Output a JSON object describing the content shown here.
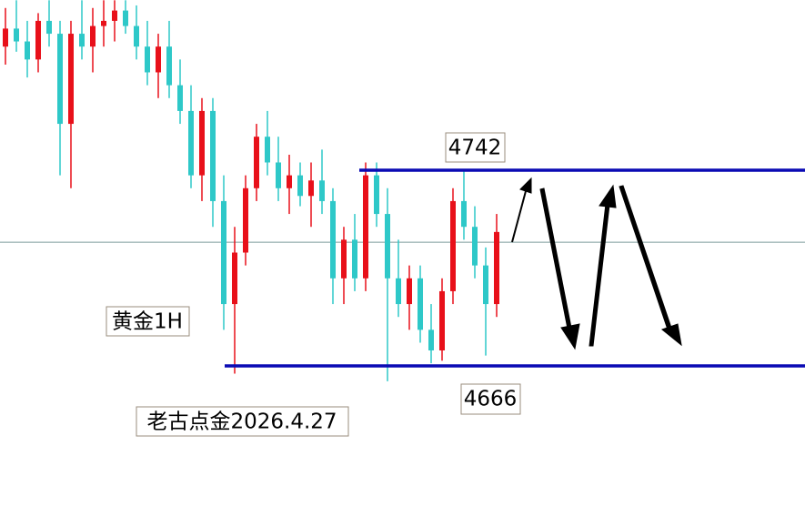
{
  "chart_data": {
    "type": "candlestick",
    "open": [
      4790,
      4797,
      4792,
      4785,
      4800,
      4795,
      4760,
      4795,
      4790,
      4798,
      4800,
      4804,
      4798,
      4790,
      4780,
      4790,
      4775,
      4765,
      4740,
      4765,
      4730,
      4690,
      4710,
      4735,
      4755,
      4745,
      4735,
      4740,
      4732,
      4738,
      4730,
      4700,
      4715,
      4700,
      4740,
      4725,
      4700,
      4690,
      4700,
      4680,
      4672,
      4695,
      4730,
      4720,
      4705,
      4690
    ],
    "high": [
      4805,
      4808,
      4800,
      4803,
      4808,
      4800,
      4800,
      4808,
      4805,
      4808,
      4808,
      4808,
      4806,
      4800,
      4795,
      4800,
      4785,
      4775,
      4770,
      4770,
      4740,
      4720,
      4740,
      4760,
      4765,
      4755,
      4748,
      4745,
      4745,
      4750,
      4735,
      4720,
      4725,
      4745,
      4745,
      4735,
      4715,
      4705,
      4705,
      4690,
      4700,
      4735,
      4742,
      4728,
      4712,
      4725
    ],
    "low": [
      4783,
      4788,
      4778,
      4780,
      4790,
      4740,
      4735,
      4785,
      4780,
      4790,
      4792,
      4795,
      4785,
      4775,
      4770,
      4770,
      4760,
      4735,
      4730,
      4720,
      4680,
      4663,
      4705,
      4730,
      4740,
      4730,
      4725,
      4728,
      4720,
      4725,
      4690,
      4690,
      4695,
      4695,
      4720,
      4660,
      4685,
      4680,
      4675,
      4667,
      4668,
      4690,
      4715,
      4700,
      4670,
      4685
    ],
    "close": [
      4797,
      4792,
      4785,
      4800,
      4795,
      4760,
      4795,
      4790,
      4798,
      4800,
      4804,
      4798,
      4790,
      4780,
      4790,
      4775,
      4765,
      4740,
      4765,
      4730,
      4690,
      4710,
      4735,
      4755,
      4745,
      4735,
      4740,
      4732,
      4738,
      4730,
      4700,
      4715,
      4700,
      4740,
      4725,
      4700,
      4690,
      4700,
      4680,
      4672,
      4695,
      4730,
      4720,
      4705,
      4690,
      4718
    ],
    "up_color": "#e8101a",
    "down_color": "#2ec8c8",
    "ylim": [
      4607.3,
      4808.1
    ],
    "levels": [
      4742,
      4666
    ],
    "level_color": "#0a0ab4",
    "price_line": 4714,
    "annotations": [
      "黄金1H",
      "老古点金2026.4.27"
    ]
  }
}
